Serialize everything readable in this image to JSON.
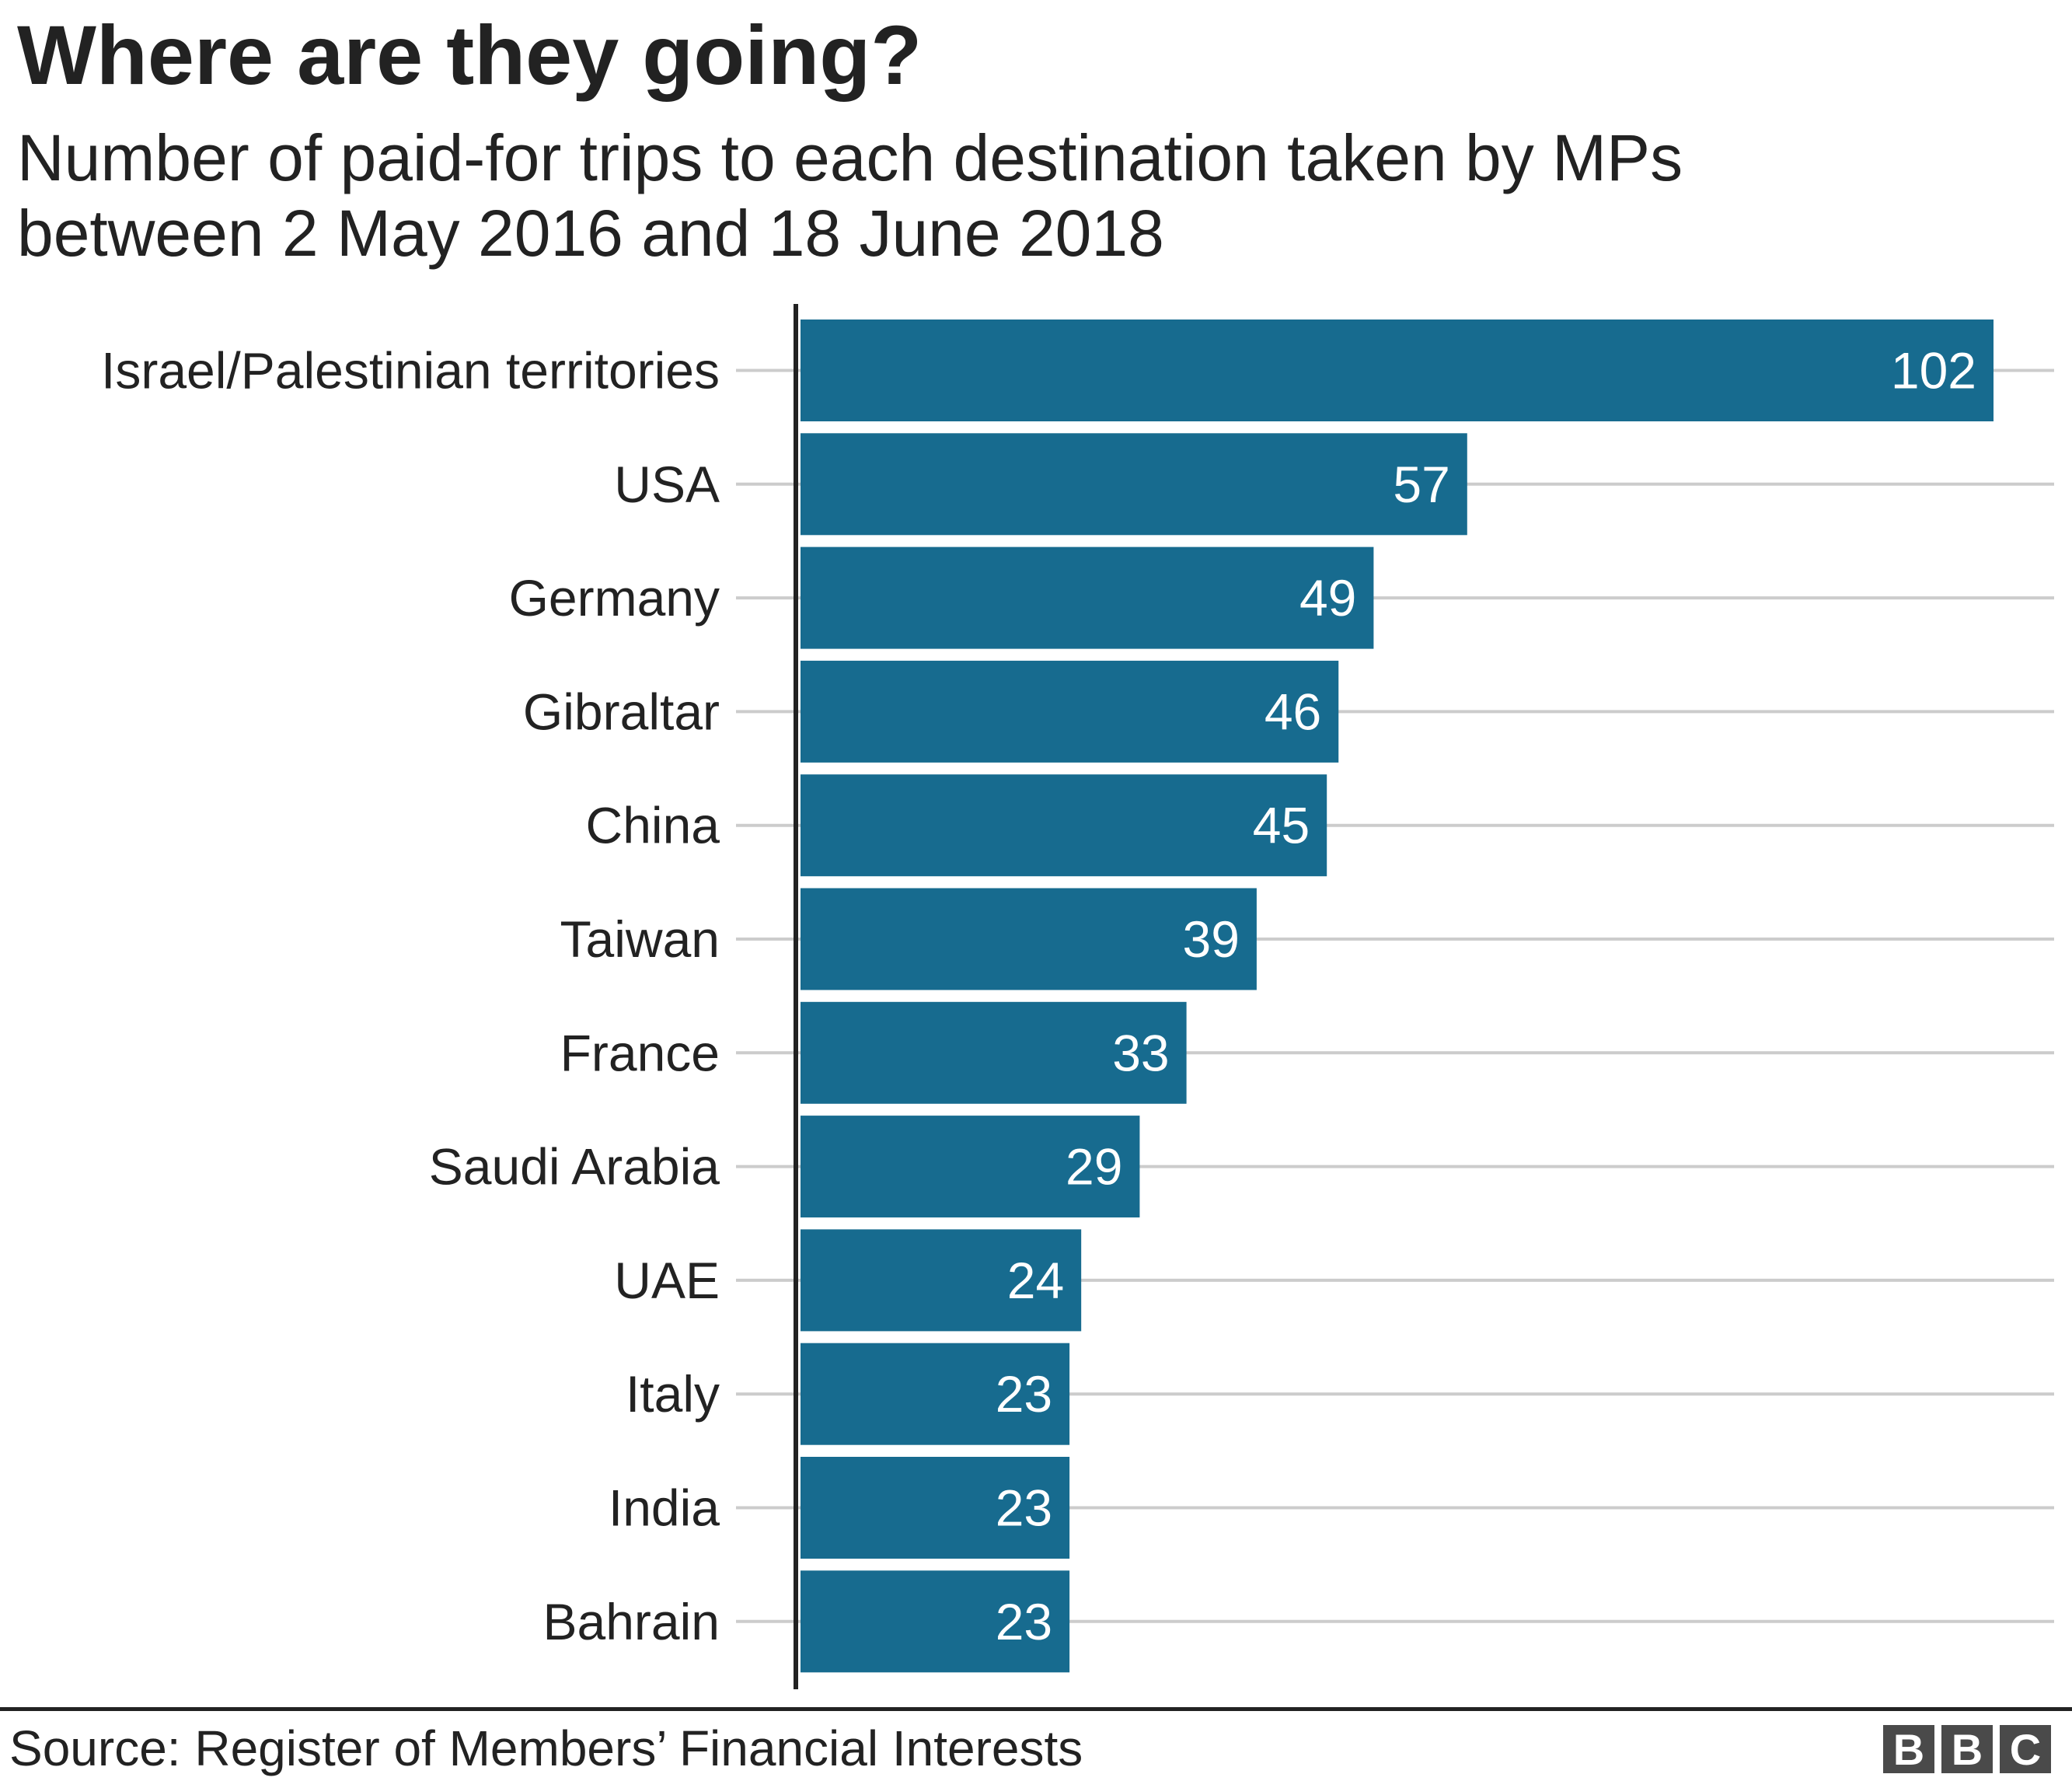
{
  "chart_data": {
    "type": "bar",
    "orientation": "horizontal",
    "title": "Where are they going?",
    "subtitle": [
      "Number of paid-for trips to each destination taken by MPs",
      "between 2 May 2016 and 18 June 2018"
    ],
    "categories": [
      "Israel/Palestinian territories",
      "USA",
      "Germany",
      "Gibraltar",
      "China",
      "Taiwan",
      "France",
      "Saudi Arabia",
      "UAE",
      "Italy",
      "India",
      "Bahrain"
    ],
    "values": [
      102,
      57,
      49,
      46,
      45,
      39,
      33,
      29,
      24,
      23,
      23,
      23
    ],
    "xlim": [
      0,
      102
    ],
    "grid": true,
    "data_labels": true,
    "bar_color": "#176b8f",
    "grid_color": "#cccccc"
  },
  "footer": {
    "source": "Source: Register of Members’ Financial Interests",
    "logo": [
      "B",
      "B",
      "C"
    ]
  }
}
